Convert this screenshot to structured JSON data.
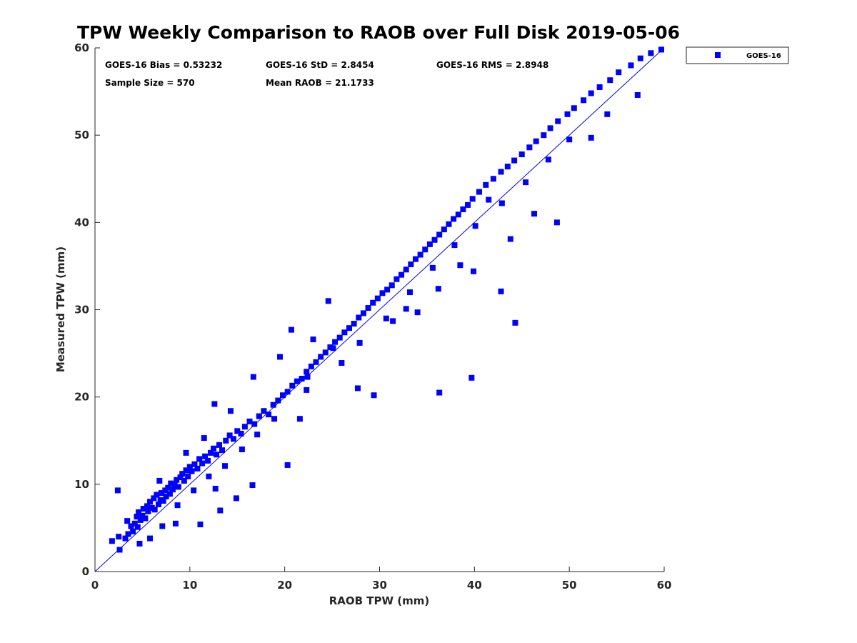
{
  "chart_data": {
    "type": "scatter",
    "title": "TPW Weekly Comparison to RAOB over Full Disk 2019-05-06",
    "xlabel": "RAOB TPW (mm)",
    "ylabel": "Measured TPW (mm)",
    "xlim": [
      0,
      60
    ],
    "ylim": [
      0,
      60
    ],
    "xticks": [
      "0",
      "10",
      "20",
      "30",
      "40",
      "50",
      "60"
    ],
    "yticks": [
      "0",
      "10",
      "20",
      "30",
      "40",
      "50",
      "60"
    ],
    "grid": false,
    "legend_position": "outside-top-right",
    "reference_line": {
      "from": [
        0,
        0
      ],
      "to": [
        60,
        60
      ],
      "color": "#0000ff"
    },
    "annotations": {
      "bias": "GOES-16 Bias = 0.53232",
      "std": "GOES-16 StD = 2.8454",
      "rms": "GOES-16 RMS = 2.8948",
      "sample_size": "Sample Size = 570",
      "mean_raob": "Mean RAOB = 21.1733"
    },
    "series": [
      {
        "name": "GOES-16",
        "color": "#0000ff",
        "marker": "square",
        "x": [
          1.8,
          2.5,
          2.6,
          3.2,
          3.5,
          3.8,
          4.0,
          4.2,
          4.4,
          4.5,
          4.6,
          4.8,
          5.0,
          5.1,
          5.3,
          5.5,
          5.6,
          5.8,
          6.0,
          6.2,
          6.3,
          6.5,
          6.7,
          6.9,
          7.0,
          7.2,
          7.4,
          7.5,
          7.7,
          7.9,
          8.0,
          8.2,
          8.4,
          8.6,
          8.8,
          9.0,
          9.2,
          9.4,
          9.6,
          9.8,
          10.0,
          10.2,
          10.5,
          10.8,
          11.0,
          11.3,
          11.6,
          11.9,
          12.2,
          12.5,
          12.8,
          13.1,
          13.4,
          13.8,
          14.2,
          14.6,
          15.0,
          15.4,
          15.8,
          16.3,
          16.8,
          17.3,
          17.8,
          18.3,
          18.8,
          19.3,
          19.8,
          20.3,
          20.8,
          21.3,
          21.8,
          22.3,
          22.8,
          23.3,
          23.8,
          24.3,
          24.8,
          25.3,
          25.8,
          26.3,
          26.8,
          27.3,
          27.8,
          28.3,
          28.8,
          29.3,
          29.8,
          30.3,
          30.8,
          31.3,
          31.8,
          32.3,
          32.8,
          33.3,
          33.8,
          34.3,
          34.8,
          35.3,
          35.8,
          36.3,
          36.8,
          37.3,
          37.8,
          38.3,
          38.8,
          39.3,
          39.8,
          40.5,
          41.2,
          42.0,
          42.8,
          43.5,
          44.2,
          45.0,
          45.8,
          46.5,
          47.3,
          48.0,
          48.8,
          49.8,
          50.5,
          51.5,
          52.3,
          53.2,
          54.3,
          55.2,
          56.5,
          57.5,
          58.6,
          59.7,
          2.4,
          3.4,
          4.7,
          6.8,
          8.5,
          9.6,
          11.1,
          12.7,
          13.2,
          14.9,
          16.6,
          20.3,
          27.7,
          32.8,
          36.3,
          39.7,
          42.8,
          44.3,
          48.7,
          50.0,
          5.8,
          7.1,
          8.7,
          10.4,
          12.0,
          13.7,
          15.5,
          17.1,
          18.9,
          22.4,
          25.1,
          27.9,
          30.7,
          33.2,
          35.6,
          37.9,
          40.1,
          42.9,
          45.4,
          47.8,
          52.3,
          54.0,
          57.2,
          11.5,
          12.6,
          14.3,
          16.7,
          19.5,
          20.7,
          21.6,
          22.3,
          23.0,
          24.6,
          26.0,
          29.4,
          31.4,
          34.0,
          36.2,
          38.5,
          39.9,
          41.5,
          43.8,
          46.3
        ],
        "y": [
          3.5,
          4.0,
          2.5,
          3.8,
          4.3,
          5.2,
          4.6,
          5.5,
          6.3,
          5.1,
          6.8,
          5.9,
          6.4,
          7.2,
          6.1,
          7.5,
          6.9,
          8.0,
          7.3,
          8.4,
          7.1,
          8.8,
          7.7,
          8.2,
          9.0,
          8.1,
          9.3,
          8.6,
          9.6,
          8.9,
          10.1,
          9.4,
          9.9,
          10.5,
          9.7,
          10.8,
          11.2,
          10.4,
          11.6,
          10.9,
          12.0,
          11.5,
          12.3,
          11.8,
          12.9,
          12.4,
          13.2,
          12.7,
          13.6,
          14.1,
          13.4,
          14.5,
          13.9,
          15.0,
          15.6,
          15.2,
          16.1,
          15.8,
          16.6,
          17.2,
          16.9,
          17.8,
          18.4,
          18.0,
          19.1,
          19.6,
          20.2,
          20.6,
          21.3,
          21.8,
          22.1,
          22.9,
          23.5,
          24.0,
          24.6,
          25.1,
          25.7,
          26.3,
          26.8,
          27.4,
          27.9,
          28.4,
          29.1,
          29.6,
          30.2,
          30.8,
          31.3,
          31.9,
          32.3,
          32.8,
          33.5,
          34.0,
          34.6,
          35.2,
          35.8,
          36.3,
          36.9,
          37.5,
          38.0,
          38.6,
          39.2,
          39.8,
          40.4,
          40.9,
          41.5,
          42.0,
          42.7,
          43.5,
          44.3,
          45.0,
          45.8,
          46.4,
          47.1,
          47.8,
          48.6,
          49.3,
          50.0,
          50.8,
          51.6,
          52.4,
          53.1,
          54.0,
          54.8,
          55.5,
          56.3,
          57.2,
          58.0,
          58.8,
          59.4,
          59.8,
          9.3,
          5.8,
          3.2,
          10.4,
          5.5,
          13.6,
          5.4,
          9.5,
          7.0,
          8.4,
          9.9,
          12.2,
          21.0,
          30.1,
          20.5,
          22.2,
          32.1,
          28.5,
          40.0,
          49.5,
          3.8,
          5.2,
          7.6,
          9.3,
          10.9,
          12.1,
          14.0,
          15.7,
          17.5,
          22.3,
          25.6,
          26.2,
          29.0,
          32.0,
          34.8,
          37.4,
          39.6,
          42.2,
          44.6,
          47.2,
          49.7,
          52.4,
          54.6,
          15.3,
          19.2,
          18.4,
          22.3,
          24.6,
          27.7,
          17.5,
          20.8,
          26.6,
          31.0,
          23.9,
          20.2,
          28.7,
          29.7,
          32.4,
          35.1,
          34.4,
          42.6,
          38.1,
          41.0
        ]
      }
    ]
  }
}
